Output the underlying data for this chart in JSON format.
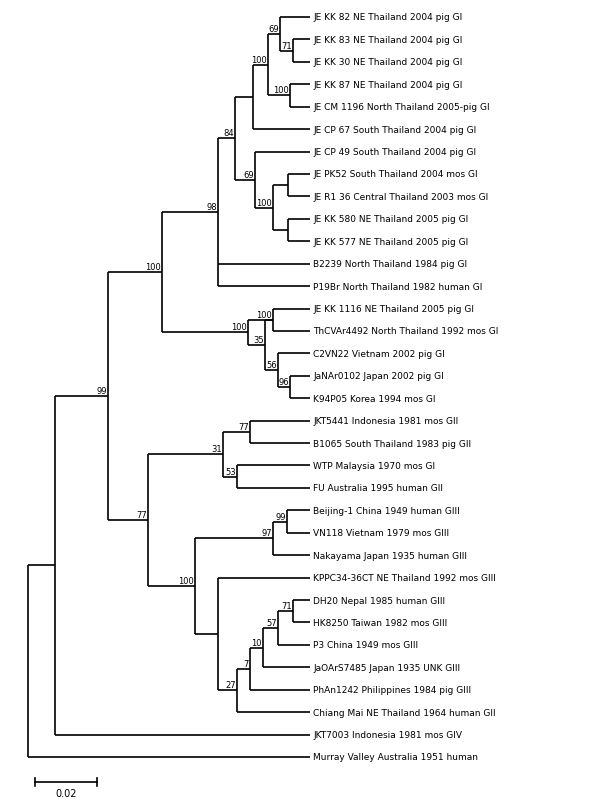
{
  "taxa": [
    "JE KK 82 NE Thailand 2004 pig GI",
    "JE KK 83 NE Thailand 2004 pig GI",
    "JE KK 30 NE Thailand 2004 pig GI",
    "JE KK 87 NE Thailand 2004 pig GI",
    "JE CM 1196 North Thailand 2005-pig GI",
    "JE CP 67 South Thailand 2004 pig GI",
    "JE CP 49 South Thailand 2004 pig GI",
    "JE PK52 South Thailand 2004 mos GI",
    "JE R1 36 Central Thailand 2003 mos GI",
    "JE KK 580 NE Thailand 2005 pig GI",
    "JE KK 577 NE Thailand 2005 pig GI",
    "B2239 North Thailand 1984 pig GI",
    "P19Br North Thailand 1982 human GI",
    "JE KK 1116 NE Thailand 2005 pig GI",
    "ThCVAr4492 North Thailand 1992 mos GI",
    "C2VN22 Vietnam 2002 pig GI",
    "JaNAr0102 Japan 2002 pig GI",
    "K94P05 Korea 1994 mos GI",
    "JKT5441 Indonesia 1981 mos GII",
    "B1065 South Thailand 1983 pig GII",
    "WTP Malaysia 1970 mos GI",
    "FU Australia 1995 human GII",
    "Beijing-1 China 1949 human GIII",
    "VN118 Vietnam 1979 mos GIII",
    "Nakayama Japan 1935 human GIII",
    "KPPC34-36CT NE Thailand 1992 mos GIII",
    "DH20 Nepal 1985 human GIII",
    "HK8250 Taiwan 1982 mos GIII",
    "P3 China 1949 mos GIII",
    "JaOArS7485 Japan 1935 UNK GIII",
    "PhAn1242 Philippines 1984 pig GIII",
    "Chiang Mai NE Thailand 1964 human GII",
    "JKT7003 Indonesia 1981 mos GIV",
    "Murray Valley Australia 1951 human"
  ],
  "background": "#ffffff",
  "line_color": "#000000",
  "text_color": "#000000",
  "scalebar_label": "0.02"
}
